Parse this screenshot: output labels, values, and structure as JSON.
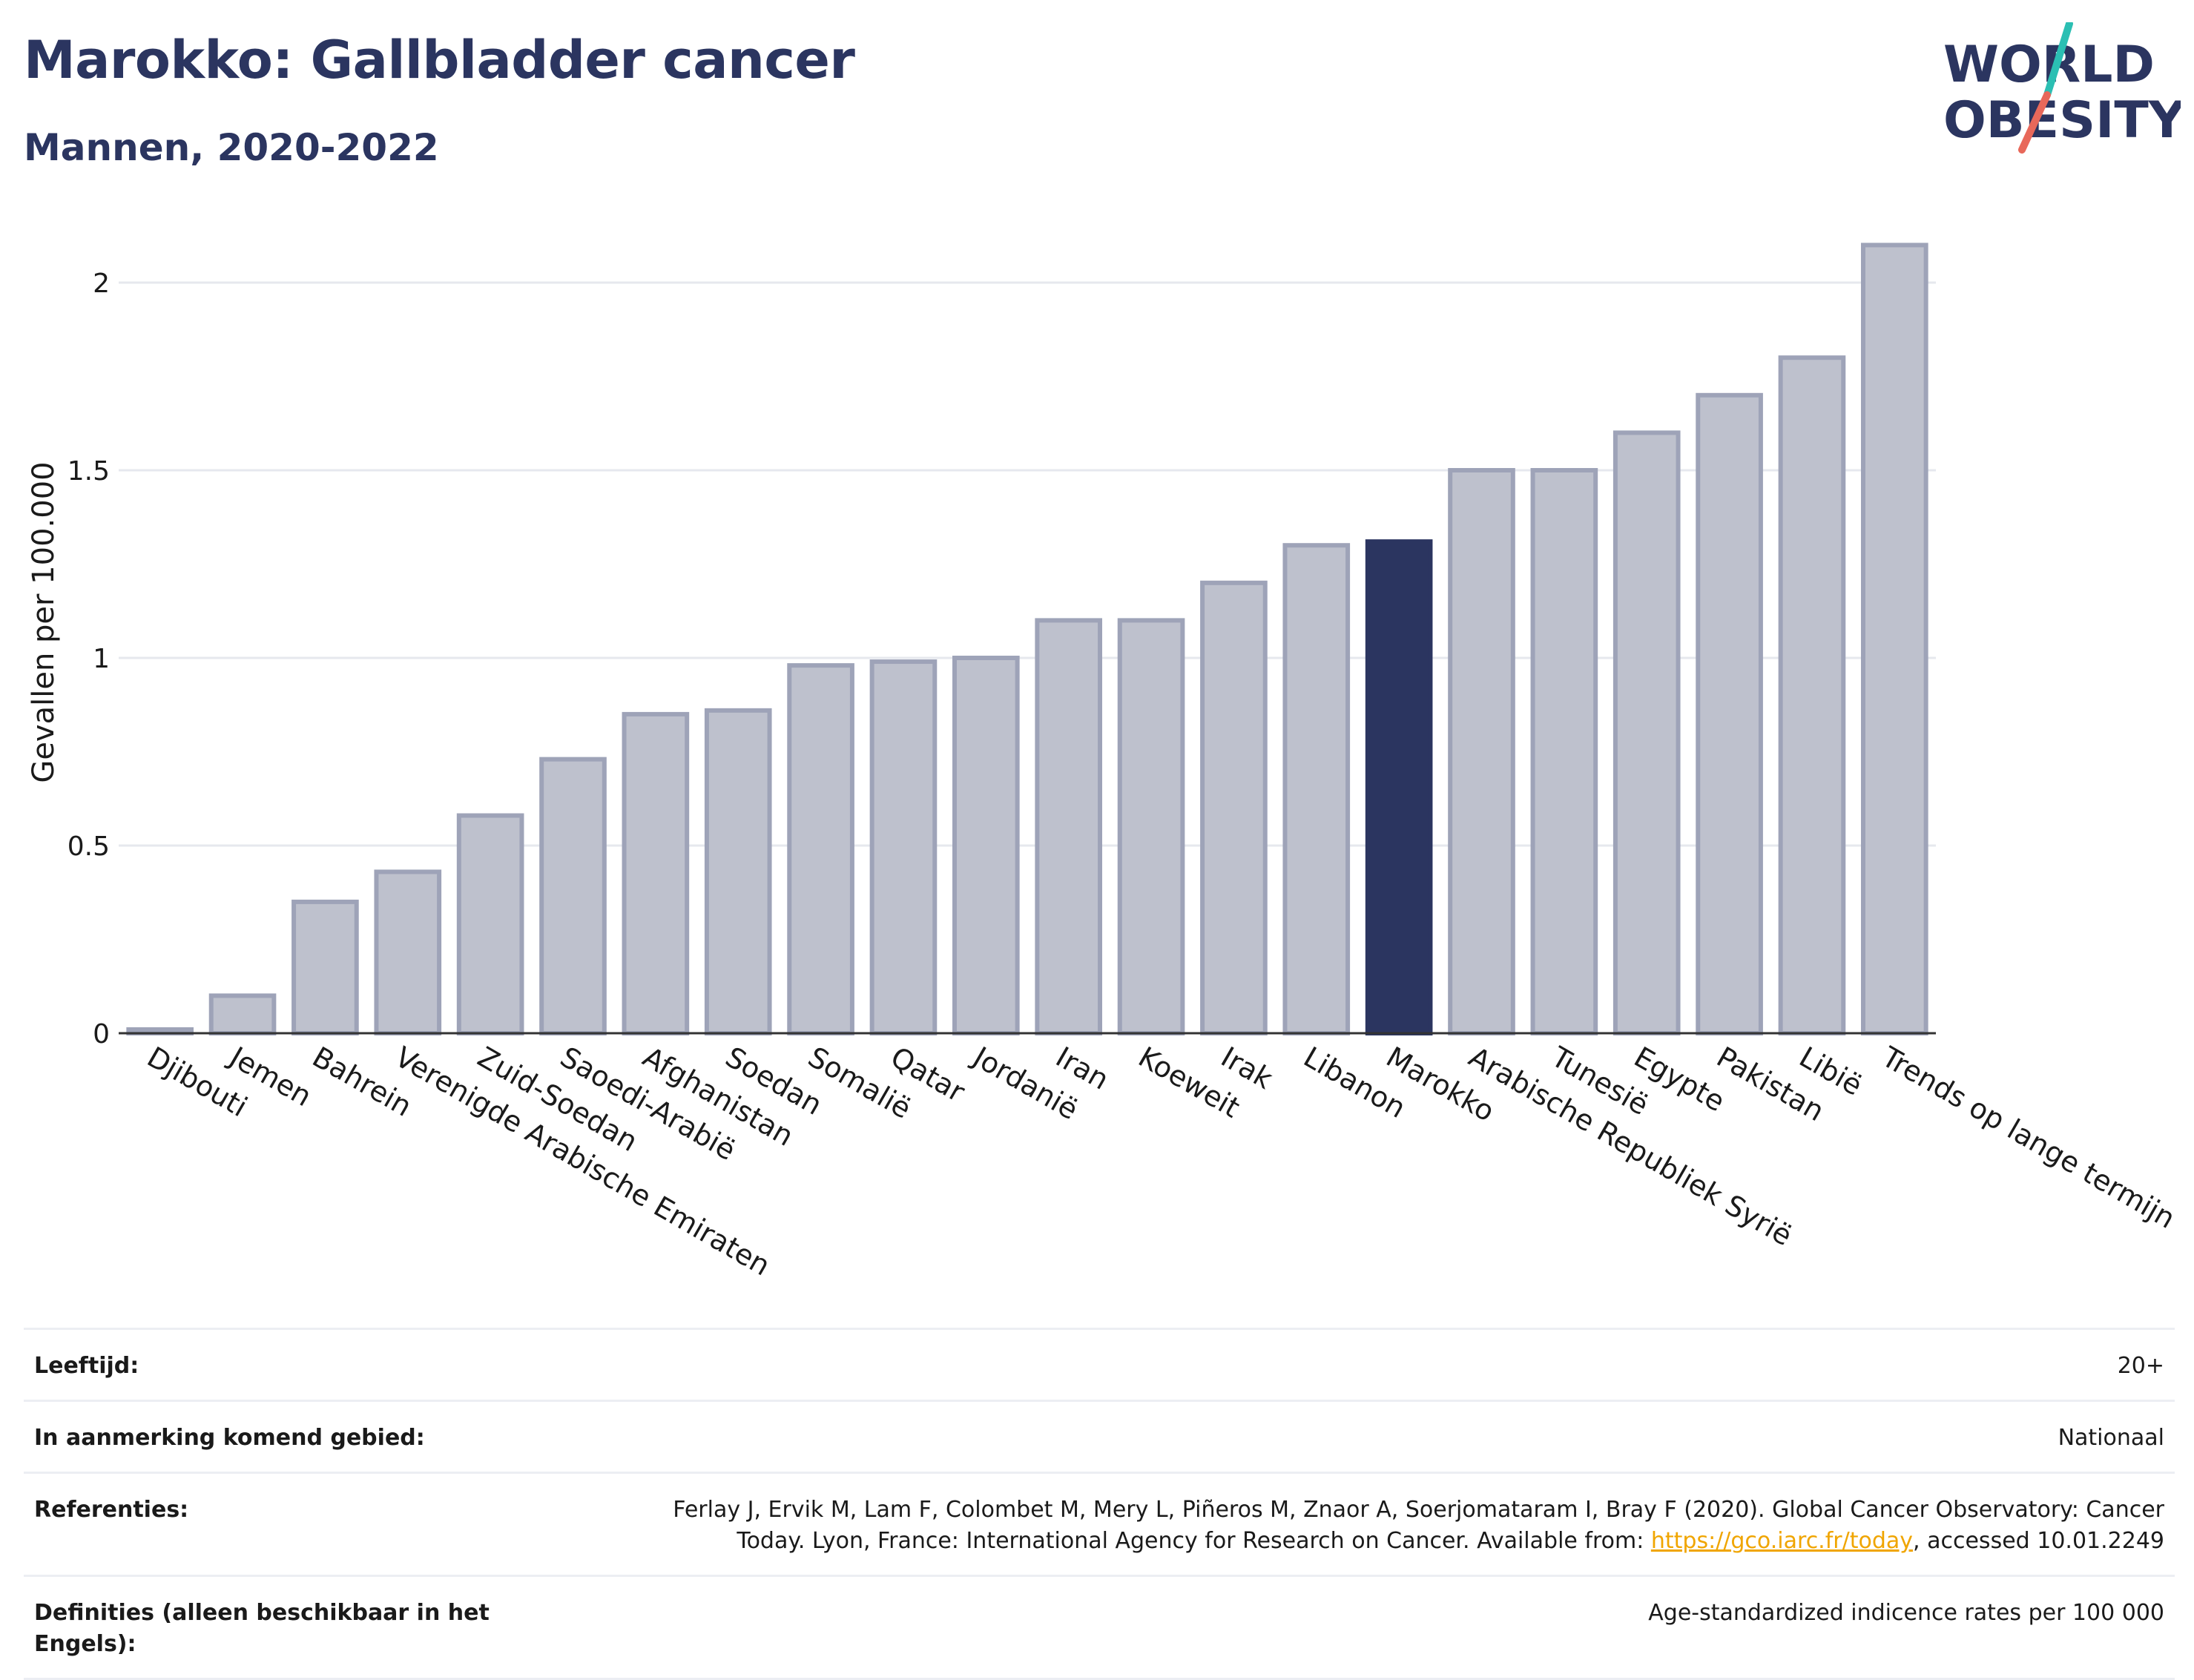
{
  "header": {
    "title": "Marokko: Gallbladder cancer",
    "subtitle": "Mannen, 2020-2022"
  },
  "logo": {
    "line1": "WORLD",
    "line2": "OBESITY",
    "accent_teal": "#2bbfb3",
    "accent_red": "#e8685a",
    "text_color": "#2b3560"
  },
  "chart_data": {
    "type": "bar",
    "ylabel": "Gevallen per 100.000",
    "ylim": [
      0,
      2.15
    ],
    "yticks": [
      0,
      0.5,
      1,
      1.5,
      2
    ],
    "ytick_labels": [
      "0",
      "0.5",
      "1",
      "1.5",
      "2"
    ],
    "grid": true,
    "categories": [
      "Djibouti",
      "Jemen",
      "Bahrein",
      "Verenigde Arabische Emiraten",
      "Zuid-Soedan",
      "Saoedi-Arabië",
      "Afghanistan",
      "Soedan",
      "Somalië",
      "Qatar",
      "Jordanië",
      "Iran",
      "Koeweit",
      "Irak",
      "Libanon",
      "Marokko",
      "Arabische Republiek Syrië",
      "Tunesië",
      "Egypte",
      "Pakistan",
      "Libië",
      "Trends op lange termijn"
    ],
    "values": [
      0.01,
      0.1,
      0.35,
      0.43,
      0.58,
      0.73,
      0.85,
      0.86,
      0.98,
      0.99,
      1.0,
      1.1,
      1.1,
      1.2,
      1.3,
      1.31,
      1.5,
      1.5,
      1.6,
      1.7,
      1.8,
      2.1
    ],
    "highlight": "Marokko",
    "colors": {
      "bar_fill": "#bec1cd",
      "bar_stroke": "#9ea3b8",
      "highlight": "#2b3560",
      "grid": "#e6e8ee",
      "axis": "#333333"
    }
  },
  "meta": {
    "rows": [
      {
        "label": "Leeftijd:",
        "value": "20+"
      },
      {
        "label": "In aanmerking komend gebied:",
        "value": "Nationaal"
      }
    ],
    "references": {
      "label": "Referenties:",
      "text_line1": "Ferlay J, Ervik M, Lam F, Colombet M, Mery L, Piñeros M, Znaor A, Soerjomataram I, Bray F (2020). Global Cancer Observatory: Cancer",
      "text_line2_before": "Today. Lyon, France: International Agency for Research on Cancer. Available from: ",
      "link": "https://gco.iarc.fr/today",
      "text_line2_after": ", accessed 10.01.2249"
    },
    "definitions": {
      "label": "Definities (alleen beschikbaar in het Engels):",
      "value": "Age-standardized indicence rates per 100 000"
    }
  }
}
